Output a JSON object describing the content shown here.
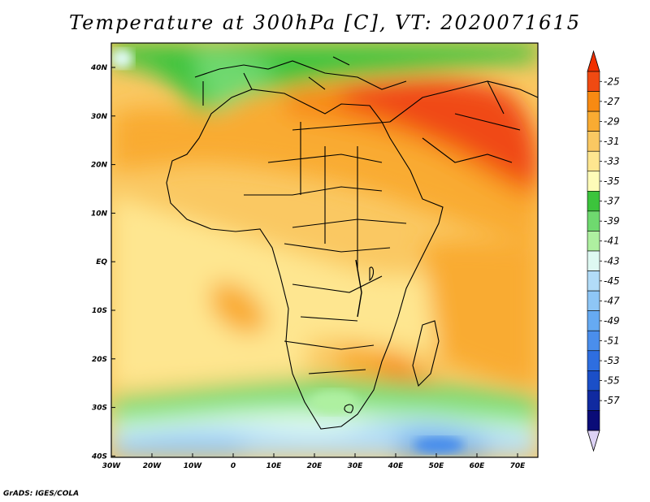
{
  "title": "Temperature at 300hPa [C], VT: 2020071615",
  "credit": "GrADS: IGES/COLA",
  "map": {
    "lat_labels": [
      "40N",
      "30N",
      "20N",
      "10N",
      "EQ",
      "10S",
      "20S",
      "30S",
      "40S"
    ],
    "lon_labels": [
      "30W",
      "20W",
      "10W",
      "0",
      "10E",
      "20E",
      "30E",
      "40E",
      "50E",
      "60E",
      "70E"
    ],
    "lon_range": [
      -30,
      75
    ],
    "lat_range": [
      -40,
      45
    ],
    "projection": "latlon"
  },
  "colorbar": {
    "labels": [
      "-25",
      "-27",
      "-29",
      "-31",
      "-33",
      "-35",
      "-37",
      "-39",
      "-41",
      "-43",
      "-45",
      "-47",
      "-49",
      "-51",
      "-53",
      "-55",
      "-57"
    ],
    "colors": [
      "#f04a12",
      "#f88a12",
      "#f9ab32",
      "#fac862",
      "#fee690",
      "#fefbb8",
      "#3cc43c",
      "#6fd96f",
      "#aef0a0",
      "#def9f2",
      "#b2dcf8",
      "#8ec6f6",
      "#66aaf2",
      "#4a8eec",
      "#2e6ee0",
      "#1b4fc8",
      "#102aa0",
      "#0a0c78"
    ],
    "top_arrow_color": "#f03000",
    "bottom_arrow_color": "#dcd2f4"
  }
}
